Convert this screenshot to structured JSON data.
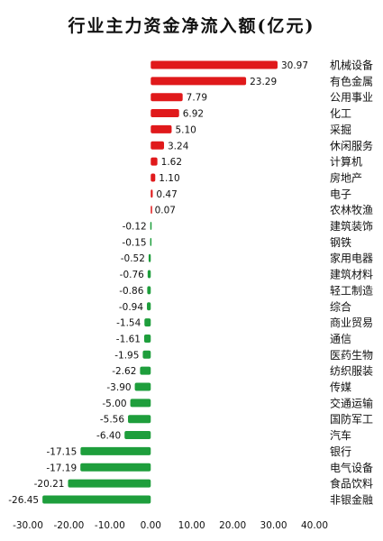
{
  "chart_data": {
    "type": "bar",
    "orientation": "horizontal",
    "title": "行业主力资金净流入额(亿元)",
    "categories": [
      "机械设备",
      "有色金属",
      "公用事业",
      "化工",
      "采掘",
      "休闲服务",
      "计算机",
      "房地产",
      "电子",
      "农林牧渔",
      "建筑装饰",
      "钢铁",
      "家用电器",
      "建筑材料",
      "轻工制造",
      "综合",
      "商业贸易",
      "通信",
      "医药生物",
      "纺织服装",
      "传媒",
      "交通运输",
      "国防军工",
      "汽车",
      "银行",
      "电气设备",
      "食品饮料",
      "非银金融"
    ],
    "values": [
      30.97,
      23.29,
      7.79,
      6.92,
      5.1,
      3.24,
      1.62,
      1.1,
      0.47,
      0.07,
      -0.12,
      -0.15,
      -0.52,
      -0.76,
      -0.86,
      -0.94,
      -1.54,
      -1.61,
      -1.95,
      -2.62,
      -3.9,
      -5.0,
      -5.56,
      -6.4,
      -17.15,
      -17.19,
      -20.21,
      -26.45
    ],
    "value_labels": [
      "30.97",
      "23.29",
      "7.79",
      "6.92",
      "5.10",
      "3.24",
      "1.62",
      "1.10",
      "0.47",
      "0.07",
      "-0.12",
      "-0.15",
      "-0.52",
      "-0.76",
      "-0.86",
      "-0.94",
      "-1.54",
      "-1.61",
      "-1.95",
      "-2.62",
      "-3.90",
      "-5.00",
      "-5.56",
      "-6.40",
      "-17.15",
      "-17.19",
      "-20.21",
      "-26.45"
    ],
    "xlim": [
      -30,
      40
    ],
    "x_ticks": [
      "-30.00",
      "-20.00",
      "-10.00",
      "0.00",
      "10.00",
      "20.00",
      "30.00",
      "40.00"
    ],
    "grid": false,
    "legend": "none",
    "colors": {
      "positive": "#e0191b",
      "negative": "#1e9e3c",
      "text": "#111111"
    }
  }
}
